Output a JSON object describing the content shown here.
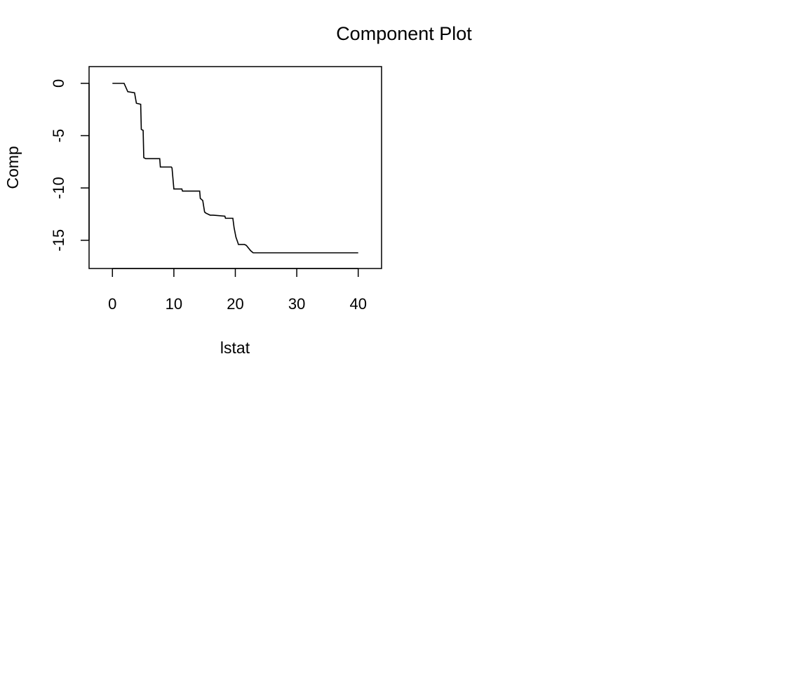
{
  "chart_data": {
    "type": "line",
    "title": "Component Plot",
    "xlabel": "lstat",
    "ylabel": "Comp",
    "xlim": [
      -3.8,
      43.8
    ],
    "ylim": [
      -17.7,
      1.6
    ],
    "xticks": [
      0,
      10,
      20,
      30,
      40
    ],
    "yticks": [
      0,
      -5,
      -10,
      -15
    ],
    "xtick_labels": [
      "0",
      "10",
      "20",
      "30",
      "40"
    ],
    "ytick_labels": [
      "0",
      "-5",
      "-10",
      "-15"
    ],
    "grid": false,
    "line_color": "#000000",
    "series": [
      {
        "x": [
          0,
          1.9,
          2.5,
          3.6,
          3.9,
          4.6,
          4.7,
          5.0,
          5.1,
          5.4,
          7.7,
          7.8,
          9.6,
          9.7,
          10.0,
          11.3,
          11.4,
          14.2,
          14.3,
          14.7,
          15.0,
          15.2,
          15.9,
          16.4,
          18.3,
          18.4,
          19.6,
          19.8,
          20.1,
          20.4,
          20.5,
          21.5,
          21.8,
          22.5,
          22.9,
          23.0,
          40.0
        ],
        "y": [
          0,
          0,
          -0.8,
          -0.9,
          -1.9,
          -2.0,
          -4.4,
          -4.5,
          -7.1,
          -7.2,
          -7.2,
          -8.0,
          -8.0,
          -8.1,
          -10.1,
          -10.1,
          -10.3,
          -10.3,
          -11.0,
          -11.2,
          -12.3,
          -12.4,
          -12.6,
          -12.6,
          -12.7,
          -12.9,
          -12.9,
          -13.8,
          -14.7,
          -15.2,
          -15.4,
          -15.4,
          -15.5,
          -16.0,
          -16.2,
          -16.2,
          -16.2
        ]
      }
    ]
  }
}
